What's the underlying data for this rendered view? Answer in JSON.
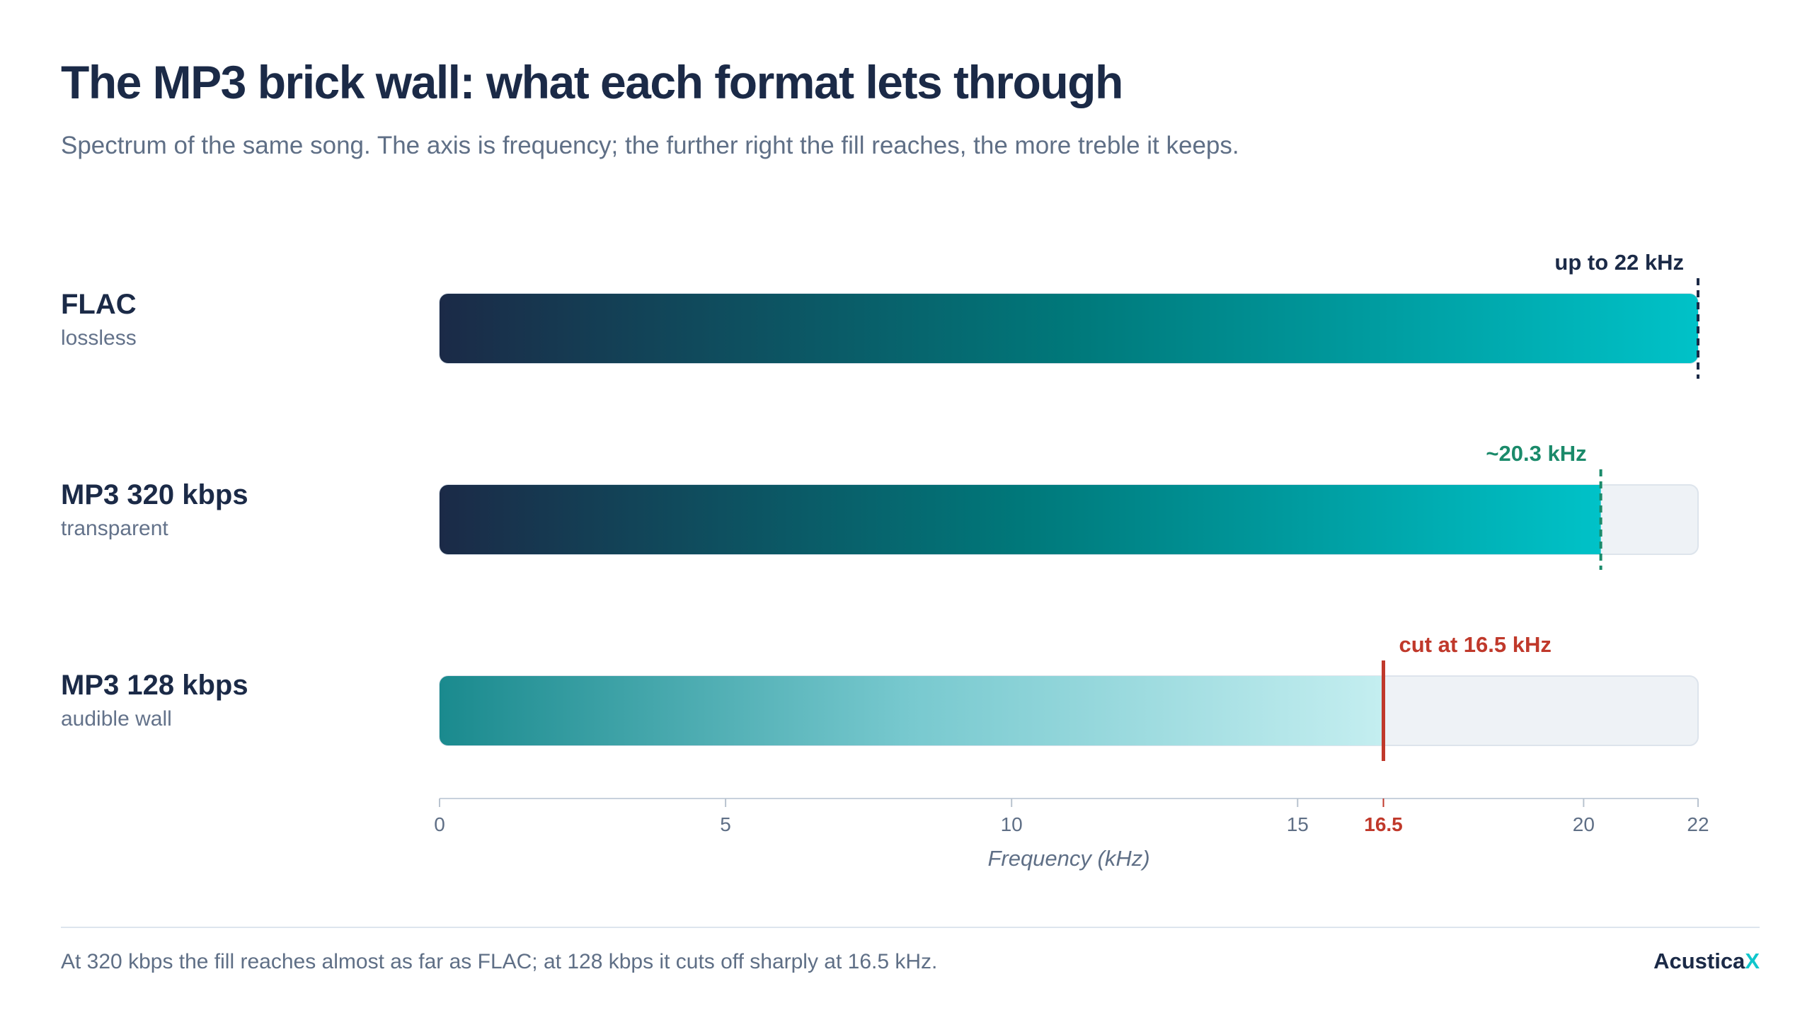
{
  "title": "The MP3 brick wall: what each format lets through",
  "subtitle": "Spectrum of the same song. The axis is frequency; the further right the fill reaches, the more treble it keeps.",
  "footer": {
    "note": "At 320 kbps the fill reaches almost as far as FLAC; at 128 kbps it cuts off sharply at 16.5 kHz.",
    "brand_main": "Acustica",
    "brand_accent": "X"
  },
  "colors": {
    "navy": "#1b2a47",
    "teal": "#00c2c8",
    "green_marker": "#1a8a6a",
    "red_marker": "#c0392b",
    "track": "#eef2f6",
    "brand_accent": "#10c6cc"
  },
  "chart_data": {
    "type": "bar",
    "orientation": "horizontal",
    "xlabel": "Frequency (kHz)",
    "xlim": [
      0,
      22
    ],
    "xticks": [
      {
        "value": 0,
        "label": "0"
      },
      {
        "value": 5,
        "label": "5"
      },
      {
        "value": 10,
        "label": "10"
      },
      {
        "value": 15,
        "label": "15"
      },
      {
        "value": 16.5,
        "label": "16.5",
        "highlight": true
      },
      {
        "value": 20,
        "label": "20"
      },
      {
        "value": 22,
        "label": "22"
      }
    ],
    "categories": [
      "FLAC",
      "MP3 320 kbps",
      "MP3 128 kbps"
    ],
    "series": [
      {
        "category": "FLAC",
        "description": "lossless",
        "value": 22,
        "annotation": "up to 22 kHz",
        "marker_style": "dashed",
        "marker_color": "#1b2a47",
        "gradient": [
          "#1b2a47",
          "#00787a",
          "#00c2c8"
        ]
      },
      {
        "category": "MP3 320 kbps",
        "description": "transparent",
        "value": 20.3,
        "annotation": "~20.3 kHz",
        "marker_style": "dashed",
        "marker_color": "#1a8a6a",
        "gradient": [
          "#1b2a47",
          "#00787a",
          "#00c2c8"
        ]
      },
      {
        "category": "MP3 128 kbps",
        "description": "audible wall",
        "value": 16.5,
        "annotation": "cut at 16.5 kHz",
        "marker_style": "solid",
        "marker_color": "#c0392b",
        "gradient": [
          "#1a8a8e",
          "#78c9cf",
          "#c4eef0"
        ]
      }
    ]
  }
}
